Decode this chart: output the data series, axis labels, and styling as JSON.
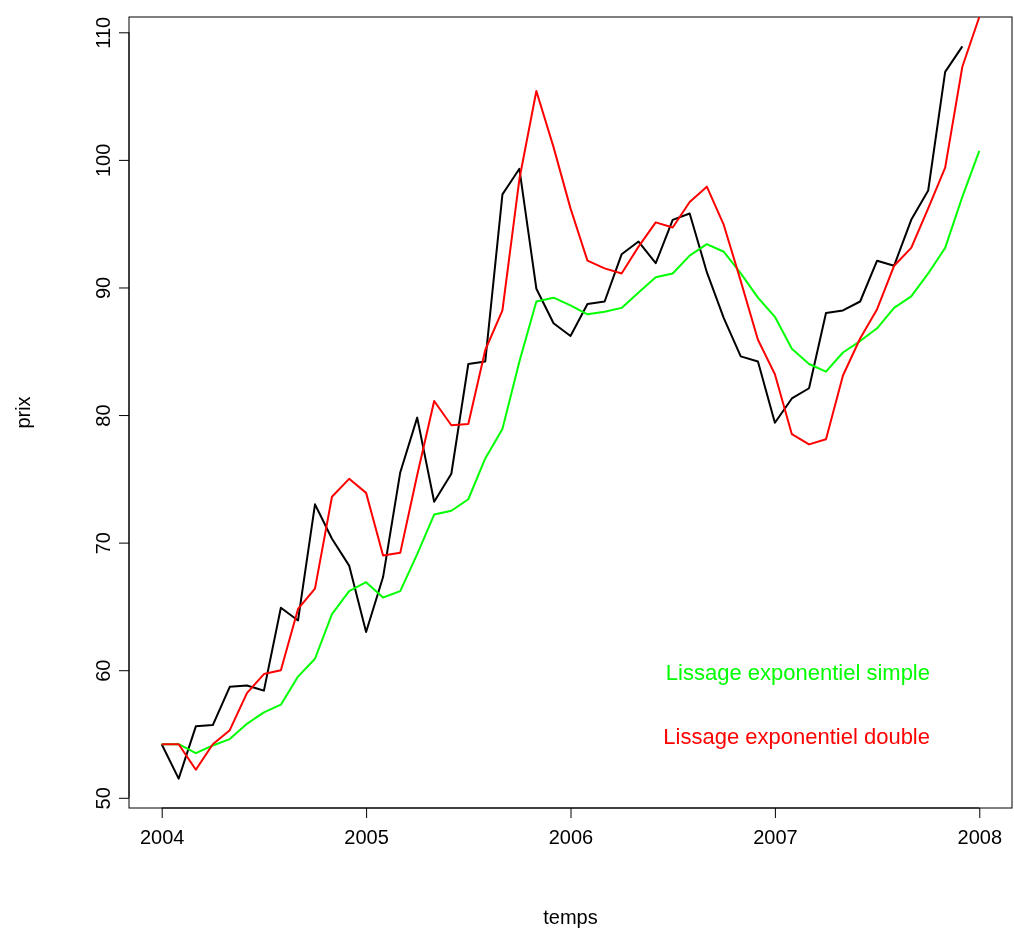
{
  "chart_data": {
    "type": "line",
    "xlabel": "temps",
    "ylabel": "prix",
    "x": [
      2004,
      2004.083,
      2004.167,
      2004.25,
      2004.333,
      2004.417,
      2004.5,
      2004.583,
      2004.667,
      2004.75,
      2004.833,
      2004.917,
      2005,
      2005.083,
      2005.167,
      2005.25,
      2005.333,
      2005.417,
      2005.5,
      2005.583,
      2005.667,
      2005.75,
      2005.833,
      2005.917,
      2006,
      2006.083,
      2006.167,
      2006.25,
      2006.333,
      2006.417,
      2006.5,
      2006.583,
      2006.667,
      2006.75,
      2006.833,
      2006.917,
      2007,
      2007.083,
      2007.167,
      2007.25,
      2007.333,
      2007.417,
      2007.5,
      2007.583,
      2007.667,
      2007.75,
      2007.833,
      2007.917,
      2008
    ],
    "series": [
      {
        "color": "#000000",
        "values": [
          54.2,
          51.5,
          55.6,
          55.7,
          58.7,
          58.8,
          58.4,
          64.9,
          63.9,
          73.0,
          70.3,
          68.2,
          63.0,
          67.3,
          75.5,
          79.8,
          73.2,
          75.4,
          84.0,
          84.2,
          97.3,
          99.3,
          89.9,
          87.2,
          86.2,
          88.7,
          88.9,
          92.6,
          93.6,
          91.9,
          95.3,
          95.8,
          91.2,
          87.6,
          84.6,
          84.2,
          79.4,
          81.3,
          82.1,
          88.0,
          88.2,
          88.9,
          92.1,
          91.7,
          95.3,
          97.6,
          106.9,
          108.9,
          null
        ]
      },
      {
        "name": "Lissage exponentiel simple",
        "color": "#00ff00",
        "values": [
          54.2,
          54.2,
          53.5,
          54.1,
          54.6,
          55.8,
          56.7,
          57.3,
          59.5,
          60.9,
          64.4,
          66.2,
          66.9,
          65.7,
          66.2,
          69.1,
          72.2,
          72.5,
          73.4,
          76.6,
          78.9,
          84.2,
          88.9,
          89.2,
          88.6,
          87.9,
          88.1,
          88.4,
          89.6,
          90.8,
          91.1,
          92.5,
          93.4,
          92.8,
          91.1,
          89.2,
          87.7,
          85.2,
          84.0,
          83.4,
          84.9,
          85.8,
          86.8,
          88.4,
          89.3,
          91.1,
          93.1,
          97.1,
          100.7
        ]
      },
      {
        "name": "Lissage exponentiel double",
        "color": "#ff0000",
        "values": [
          54.2,
          54.2,
          52.2,
          54.2,
          55.3,
          58.2,
          59.7,
          60.0,
          64.8,
          66.4,
          73.6,
          75.0,
          73.9,
          69.0,
          69.2,
          75.3,
          81.1,
          79.2,
          79.3,
          85.1,
          88.2,
          98.5,
          105.4,
          101.0,
          96.2,
          92.1,
          91.5,
          91.1,
          93.2,
          95.1,
          94.7,
          96.7,
          97.9,
          94.9,
          90.5,
          85.9,
          83.2,
          78.5,
          77.7,
          78.1,
          83.1,
          86.0,
          88.3,
          91.7,
          93.1,
          96.2,
          99.4,
          107.3,
          111.2
        ]
      }
    ],
    "xlim": [
      2003.84,
      2008.16
    ],
    "xticks": [
      2004,
      2005,
      2006,
      2007,
      2008
    ],
    "ylim": [
      49.2,
      111.2
    ],
    "yticks": [
      50,
      60,
      70,
      80,
      90,
      100,
      110
    ],
    "legend": "bottom right"
  }
}
